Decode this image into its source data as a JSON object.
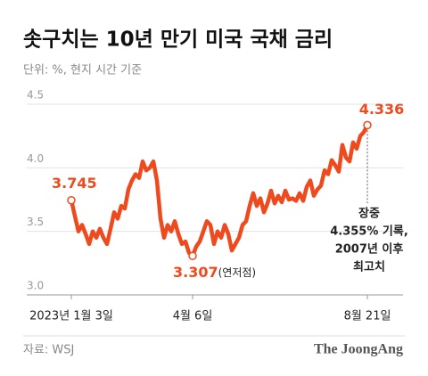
{
  "chart_data": {
    "type": "line",
    "title": "솟구치는 10년 만기 미국 국채 금리",
    "subtitle": "단위: %, 현지 시간 기준",
    "source": "자료: WSJ",
    "brand": "The JoongAng",
    "color": "#ee4a1e",
    "categories": [
      "2023년 1월 3일",
      null,
      null,
      null,
      null,
      null,
      null,
      null,
      null,
      null,
      null,
      null,
      null,
      null,
      null,
      null,
      null,
      null,
      null,
      null,
      null,
      null,
      null,
      null,
      null,
      null,
      null,
      null,
      null,
      null,
      null,
      null,
      null,
      null,
      "4월 6일",
      null,
      null,
      null,
      null,
      null,
      null,
      null,
      null,
      null,
      null,
      null,
      null,
      null,
      null,
      null,
      null,
      null,
      null,
      null,
      null,
      null,
      null,
      null,
      null,
      null,
      null,
      null,
      null,
      null,
      null,
      null,
      null,
      null,
      null,
      null,
      null,
      null,
      null,
      null,
      null,
      null,
      null,
      null,
      null,
      null,
      null,
      null,
      null,
      "8월 21일"
    ],
    "values": [
      3.745,
      3.62,
      3.5,
      3.55,
      3.48,
      3.4,
      3.5,
      3.45,
      3.52,
      3.45,
      3.4,
      3.52,
      3.65,
      3.6,
      3.7,
      3.68,
      3.83,
      3.9,
      3.95,
      3.92,
      4.05,
      3.98,
      4.0,
      4.05,
      3.9,
      3.6,
      3.45,
      3.55,
      3.5,
      3.58,
      3.48,
      3.4,
      3.42,
      3.33,
      3.307,
      3.38,
      3.42,
      3.5,
      3.58,
      3.55,
      3.4,
      3.5,
      3.45,
      3.55,
      3.48,
      3.35,
      3.4,
      3.45,
      3.55,
      3.58,
      3.7,
      3.8,
      3.7,
      3.76,
      3.65,
      3.72,
      3.82,
      3.72,
      3.78,
      3.73,
      3.82,
      3.75,
      3.76,
      3.74,
      3.8,
      3.74,
      3.85,
      3.9,
      3.78,
      3.83,
      3.86,
      3.98,
      3.95,
      4.06,
      4.02,
      3.97,
      4.18,
      4.08,
      4.05,
      4.2,
      4.15,
      4.25,
      4.28,
      4.336
    ],
    "ylim": [
      3,
      4.5
    ],
    "yticks": [
      {
        "value": 3,
        "label": "3.0"
      },
      3.5,
      {
        "value": 4,
        "label": "4.0"
      },
      4.5
    ],
    "grid": true,
    "min_note": "(연저점)",
    "peak_note": [
      "장중",
      "4.355% 기록,",
      "2007년 이후",
      "최고치"
    ]
  }
}
